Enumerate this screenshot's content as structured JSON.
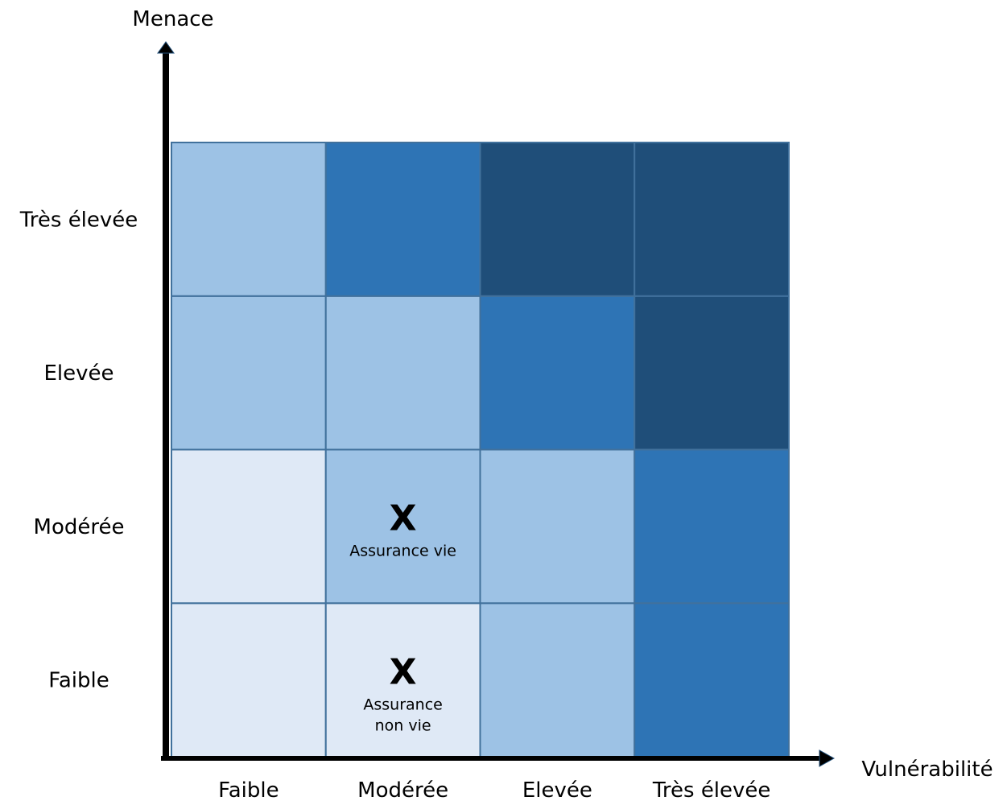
{
  "chart_data": {
    "type": "heatmap",
    "title": "",
    "xlabel": "Vulnérabilité",
    "ylabel": "Menace",
    "x_categories": [
      "Faible",
      "Modérée",
      "Elevée",
      "Très élevée"
    ],
    "y_categories": [
      "Faible",
      "Modérée",
      "Elevée",
      "Très élevée"
    ],
    "levels": {
      "1": "#dfe9f6",
      "2": "#9dc2e5",
      "3": "#2e74b5",
      "4": "#1f4e79"
    },
    "cells": [
      [
        1,
        1,
        2,
        3
      ],
      [
        1,
        2,
        2,
        3
      ],
      [
        2,
        2,
        3,
        4
      ],
      [
        2,
        3,
        4,
        4
      ]
    ],
    "markers": [
      {
        "x": "Modérée",
        "y": "Modérée",
        "symbol": "X",
        "label": [
          "Assurance vie"
        ]
      },
      {
        "x": "Modérée",
        "y": "Faible",
        "symbol": "X",
        "label": [
          "Assurance",
          "non vie"
        ]
      }
    ]
  }
}
